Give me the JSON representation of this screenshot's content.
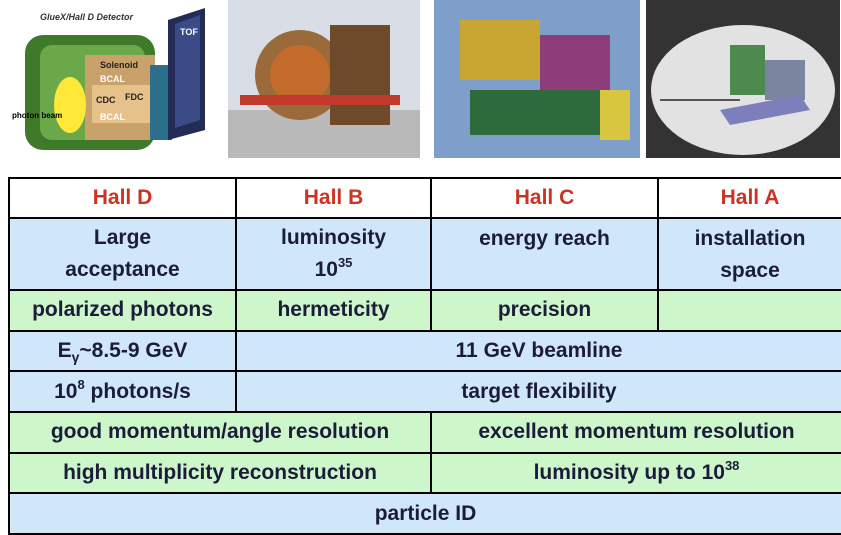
{
  "images": [
    {
      "labels": [
        "GlueX/Hall D Detector",
        "Solenoid",
        "TOF",
        "BCAL",
        "CDC",
        "FDC",
        "BCAL",
        "photon beam"
      ]
    },
    {},
    {},
    {}
  ],
  "table": {
    "header": [
      "Hall D",
      "Hall B",
      "Hall C",
      "Hall A"
    ],
    "rows": [
      [
        [
          {
            "text": "Large acceptance"
          }
        ],
        [
          {
            "text": "luminosity"
          },
          {
            "text": "10"
          },
          {
            "text": "35",
            "style": "sup"
          }
        ],
        [
          {
            "text": "energy reach"
          }
        ],
        [
          {
            "text": "installation space"
          }
        ]
      ],
      [
        [
          {
            "text": "polarized photons"
          }
        ],
        [
          {
            "text": "hermeticity"
          }
        ],
        [
          {
            "text": "precision"
          }
        ]
      ],
      [
        [
          {
            "text": "E"
          },
          {
            "text": "γ",
            "style": "sub"
          },
          {
            "text": "~8.5-9 GeV"
          }
        ],
        [
          {
            "text": "11 GeV beamline"
          }
        ]
      ],
      [
        [
          {
            "text": "10"
          },
          {
            "text": "8",
            "style": "sup"
          },
          {
            "text": " photons/s"
          }
        ],
        [
          {
            "text": "target flexibility"
          }
        ]
      ],
      [
        [
          {
            "text": "good momentum/angle resolution"
          }
        ],
        [
          {
            "text": "excellent momentum resolution"
          }
        ]
      ],
      [
        [
          {
            "text": "high multiplicity reconstruction"
          }
        ],
        [
          {
            "text": "luminosity up to 10"
          },
          {
            "text": "38",
            "style": "sup"
          }
        ]
      ],
      [
        [
          {
            "text": "particle ID"
          }
        ]
      ]
    ]
  }
}
